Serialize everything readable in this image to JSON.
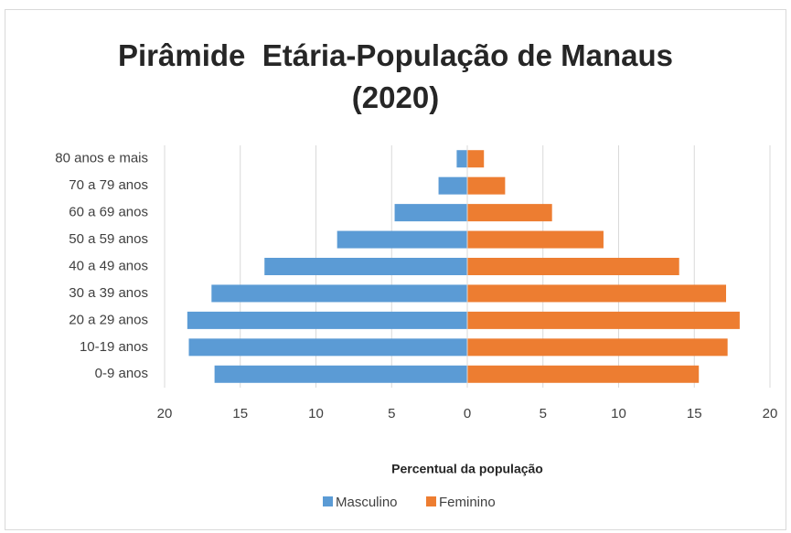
{
  "chart_data": {
    "type": "bar",
    "orientation": "horizontal",
    "title": "Pirâmide  Etária-População de Manaus (2020)",
    "x_label": "Percentual da população",
    "categories": [
      "80 anos e mais",
      "70 a 79 anos",
      "60 a 69 anos",
      "50 a 59 anos",
      "40 a 49 anos",
      "30 a 39 anos",
      "20 a 29 anos",
      "10-19 anos",
      "0-9 anos"
    ],
    "series": [
      {
        "name": "Masculino",
        "color": "#5b9bd5",
        "values": [
          -0.7,
          -1.9,
          -4.8,
          -8.6,
          -13.4,
          -16.9,
          -18.5,
          -18.4,
          -16.7
        ]
      },
      {
        "name": "Feminino",
        "color": "#ed7d31",
        "values": [
          1.1,
          2.5,
          5.6,
          9.0,
          14.0,
          17.1,
          18.0,
          17.2,
          15.3
        ]
      }
    ],
    "xlim": [
      -20,
      20
    ],
    "xticks": [
      {
        "value": -20,
        "label": "20"
      },
      {
        "value": -15,
        "label": "15"
      },
      {
        "value": -10,
        "label": "10"
      },
      {
        "value": -5,
        "label": "5"
      },
      0,
      5,
      10,
      15,
      20
    ],
    "grid": true,
    "legend": "bottom"
  }
}
